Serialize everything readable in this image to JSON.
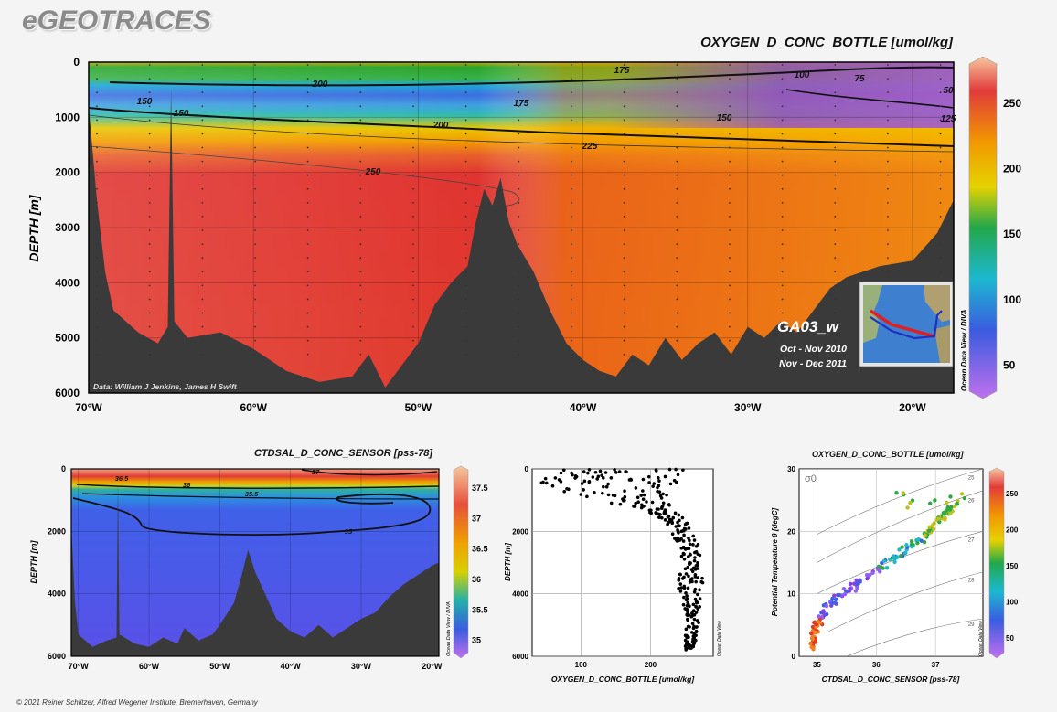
{
  "header": {
    "brand": "eGEOTRACES",
    "footer": "© 2021 Reiner Schlitzer, Alfred Wegener Institute, Bremerhaven, Germany"
  },
  "section": {
    "title": "OXYGEN_D_CONC_BOTTLE [umol/kg]",
    "ylabel": "DEPTH [m]",
    "credit": "Data: William J Jenkins, James H Swift",
    "cruise": "GA03_w",
    "dates": [
      "Oct - Nov 2010",
      "Nov - Dec 2011"
    ],
    "odv": "Ocean Data View / DIVA"
  },
  "salinity": {
    "title": "CTDSAL_D_CONC_SENSOR [pss-78]",
    "ylabel": "DEPTH [m]",
    "odv": "Ocean Data View / DIVA"
  },
  "profile": {
    "xlabel": "OXYGEN_D_CONC_BOTTLE [umol/kg]",
    "ylabel": "DEPTH [m]",
    "odv": "Ocean Data View"
  },
  "ts": {
    "title": "OXYGEN_D_CONC_BOTTLE [umol/kg]",
    "xlabel": "CTDSAL_D_CONC_SENSOR [pss-78]",
    "ylabel": "Potential Temperature θ [degC]",
    "sigma_label": "σ0",
    "odv": "Ocean Data View"
  },
  "chart_data": [
    {
      "type": "heatmap",
      "title": "OXYGEN_D_CONC_BOTTLE [umol/kg]",
      "ylabel": "DEPTH [m]",
      "x_ticks": [
        "70°W",
        "60°W",
        "50°W",
        "40°W",
        "30°W",
        "20°W"
      ],
      "x_tick_values": [
        -70,
        -60,
        -50,
        -40,
        -30,
        -20
      ],
      "xlim": [
        -70,
        -17.5
      ],
      "y_ticks": [
        0,
        1000,
        2000,
        3000,
        4000,
        5000,
        6000
      ],
      "ylim": [
        0,
        6000
      ],
      "colorbar_ticks": [
        250,
        200,
        150,
        100,
        50
      ],
      "colorbar_range": [
        30,
        280
      ],
      "contour_labels": [
        "200",
        "175",
        "100",
        "75",
        "150",
        "175",
        "150",
        "150",
        "200",
        "225",
        "250",
        "50",
        "125"
      ]
    },
    {
      "type": "heatmap",
      "title": "CTDSAL_D_CONC_SENSOR [pss-78]",
      "ylabel": "DEPTH [m]",
      "x_ticks": [
        "70°W",
        "60°W",
        "50°W",
        "40°W",
        "30°W",
        "20°W"
      ],
      "x_tick_values": [
        -70,
        -60,
        -50,
        -40,
        -30,
        -20
      ],
      "xlim": [
        -71,
        -19
      ],
      "y_ticks": [
        0,
        2000,
        4000,
        6000
      ],
      "ylim": [
        0,
        6000
      ],
      "colorbar_ticks": [
        "37.5",
        "37",
        "36.5",
        "36",
        "35.5",
        "35"
      ],
      "colorbar_range": [
        34.8,
        37.8
      ],
      "contour_labels": [
        "36.5",
        "37",
        "36",
        "35.5",
        "35"
      ]
    },
    {
      "type": "scatter",
      "xlabel": "OXYGEN_D_CONC_BOTTLE [umol/kg]",
      "ylabel": "DEPTH [m]",
      "xlim": [
        30,
        290
      ],
      "ylim": [
        0,
        6000
      ],
      "x_ticks": [
        100,
        200
      ],
      "y_ticks": [
        0,
        2000,
        4000,
        6000
      ],
      "profile": {
        "depth": [
          0,
          200,
          400,
          700,
          1000,
          1300,
          1600,
          2000,
          2500,
          3000,
          3500,
          4000,
          4500,
          5000,
          5500,
          5800
        ],
        "oxygen_min": [
          70,
          50,
          40,
          60,
          120,
          190,
          215,
          230,
          240,
          240,
          240,
          240,
          250,
          250,
          250,
          250
        ],
        "oxygen_max": [
          250,
          245,
          240,
          230,
          225,
          230,
          250,
          260,
          270,
          275,
          275,
          275,
          270,
          270,
          265,
          260
        ]
      }
    },
    {
      "type": "scatter",
      "title": "OXYGEN_D_CONC_BOTTLE [umol/kg]",
      "xlabel": "CTDSAL_D_CONC_SENSOR [pss-78]",
      "ylabel": "Potential Temperature θ [degC]",
      "xlim": [
        34.7,
        37.8
      ],
      "ylim": [
        0,
        30
      ],
      "x_ticks": [
        35,
        36,
        37
      ],
      "y_ticks": [
        0,
        10,
        20,
        30
      ],
      "sigma_isopycnals": [
        25,
        26,
        27,
        28,
        29
      ],
      "colorbar_ticks": [
        250,
        200,
        150,
        100,
        50
      ],
      "ts_curve": {
        "salinity": [
          34.9,
          34.95,
          35.0,
          35.1,
          35.3,
          35.6,
          35.9,
          36.2,
          36.5,
          36.8,
          37.0,
          37.2,
          37.4
        ],
        "theta": [
          1.5,
          3,
          5,
          7,
          9,
          11,
          13,
          15,
          17,
          19,
          21,
          23,
          24.5
        ]
      }
    }
  ]
}
